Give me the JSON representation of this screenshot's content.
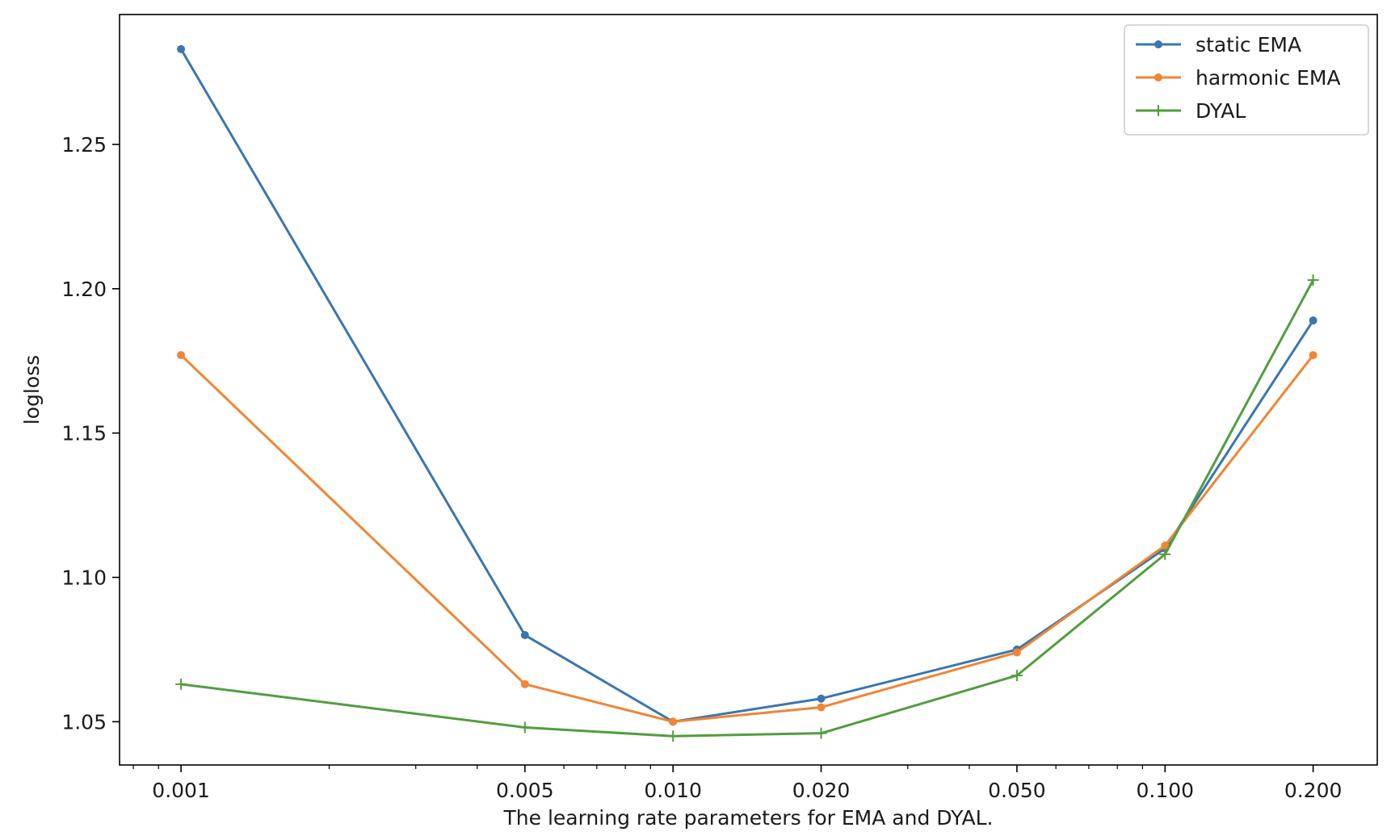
{
  "chart_data": {
    "type": "line",
    "xscale": "log",
    "xlabel": "The learning rate parameters for EMA and DYAL.",
    "ylabel": "logloss",
    "x": [
      0.001,
      0.005,
      0.01,
      0.02,
      0.05,
      0.1,
      0.2
    ],
    "xticks": [
      0.001,
      0.005,
      0.01,
      0.02,
      0.05,
      0.1,
      0.2
    ],
    "xtick_labels": [
      "0.001",
      "0.005",
      "0.010",
      "0.020",
      "0.050",
      "0.100",
      "0.200"
    ],
    "yticks": [
      1.05,
      1.1,
      1.15,
      1.2,
      1.25
    ],
    "ytick_labels": [
      "1.05",
      "1.10",
      "1.15",
      "1.20",
      "1.25"
    ],
    "xlim": [
      0.00075,
      0.27
    ],
    "ylim": [
      1.035,
      1.295
    ],
    "legend_position": "top-right",
    "grid": false,
    "series": [
      {
        "name": "static EMA",
        "color": "#3a76af",
        "marker": "dot",
        "values": [
          1.283,
          1.08,
          1.05,
          1.058,
          1.075,
          1.11,
          1.189
        ]
      },
      {
        "name": "harmonic EMA",
        "color": "#ef8536",
        "marker": "dot",
        "values": [
          1.177,
          1.063,
          1.05,
          1.055,
          1.074,
          1.111,
          1.177
        ]
      },
      {
        "name": "DYAL",
        "color": "#519e3e",
        "marker": "plus",
        "values": [
          1.063,
          1.048,
          1.045,
          1.046,
          1.066,
          1.108,
          1.203
        ]
      }
    ]
  }
}
